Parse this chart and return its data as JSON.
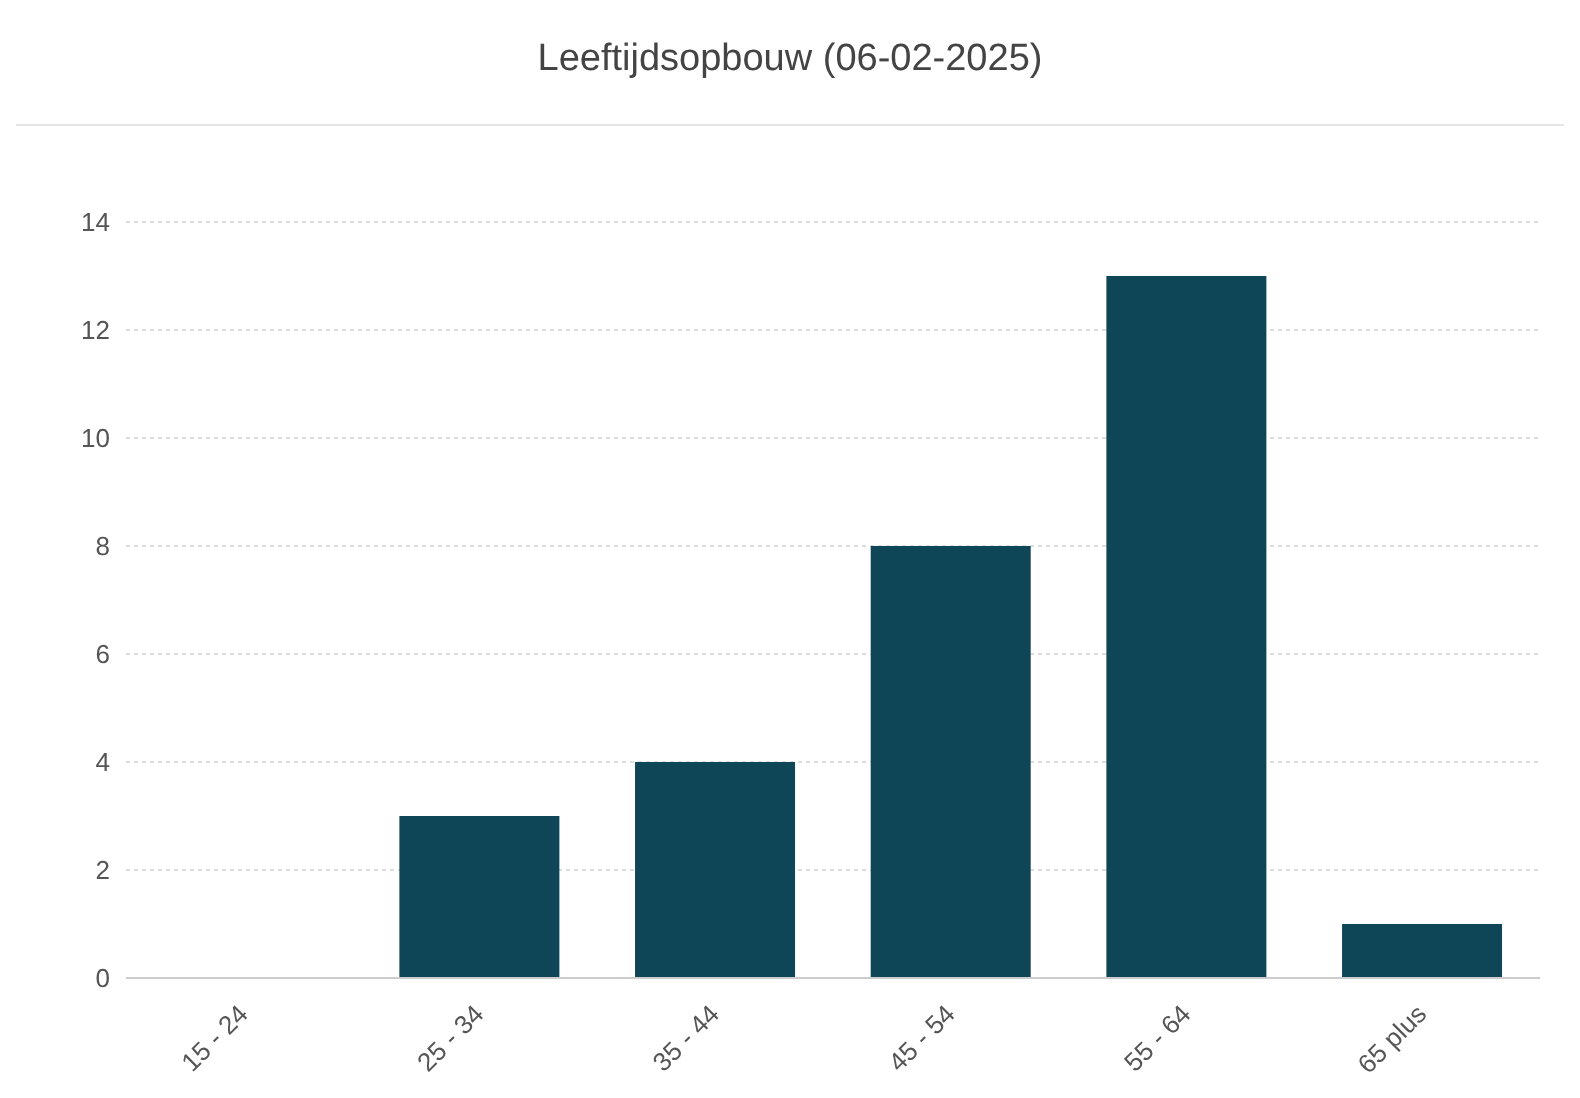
{
  "chart_data": {
    "type": "bar",
    "title": "Leeftijdsopbouw (06-02-2025)",
    "categories": [
      "15 - 24",
      "25 - 34",
      "35 - 44",
      "45 - 54",
      "55 - 64",
      "65 plus"
    ],
    "values": [
      0,
      3,
      4,
      8,
      13,
      1
    ],
    "color": "#0f4657",
    "ylim": [
      0,
      14
    ],
    "yticks": [
      0,
      2,
      4,
      6,
      8,
      10,
      12,
      14
    ],
    "grid": "y"
  }
}
